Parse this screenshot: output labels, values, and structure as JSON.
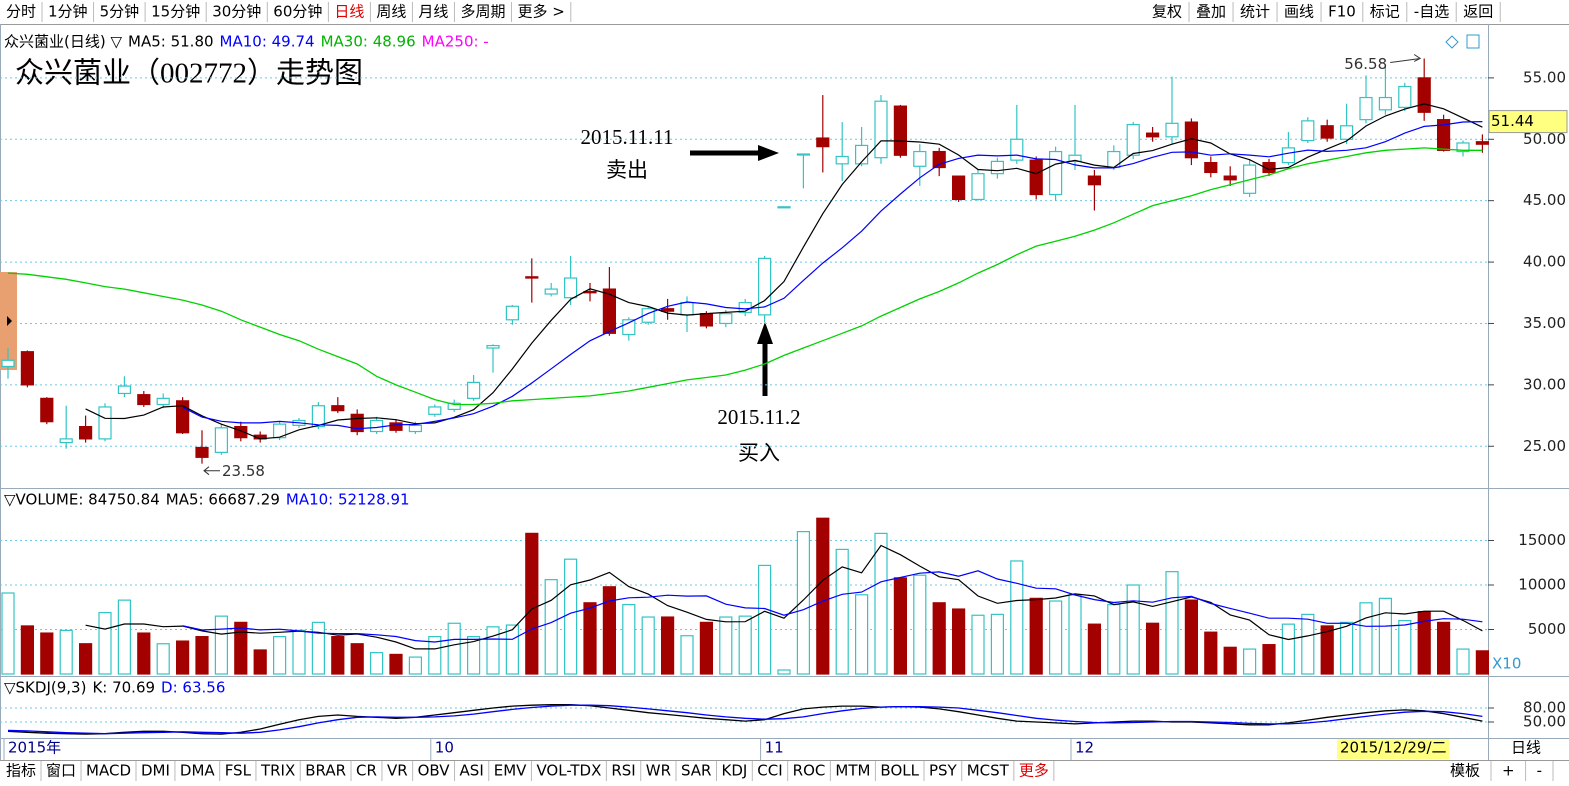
{
  "toolbar": {
    "left": [
      "分时",
      "1分钟",
      "5分钟",
      "15分钟",
      "30分钟",
      "60分钟",
      "日线",
      "周线",
      "月线",
      "多周期",
      "更多 >"
    ],
    "right": [
      "复权",
      "叠加",
      "统计",
      "画线",
      "F10",
      "标记",
      "-自选",
      "返回"
    ],
    "highlight": "日线"
  },
  "bottom_tabs": {
    "left": [
      "指标",
      "窗口",
      "MACD",
      "DMI",
      "DMA",
      "FSL",
      "TRIX",
      "BRAR",
      "CR",
      "VR",
      "OBV",
      "ASI",
      "EMV",
      "VOL-TDX",
      "RSI",
      "WR",
      "SAR",
      "KDJ",
      "CCI",
      "ROC",
      "MTM",
      "BOLL",
      "PSY",
      "MCST",
      "更多"
    ],
    "right": [
      "模板",
      "+",
      "-"
    ],
    "highlight": "更多"
  },
  "cursor": {
    "date": "2015/12/29/二",
    "price": 51.44
  },
  "period_label": "日线",
  "chart_data": [
    {
      "type": "candlestick",
      "title": "众兴菌业（002772）走势图",
      "legend": [
        {
          "text": "众兴菌业(日线) ▽",
          "color": "#000000"
        },
        {
          "text": "MA5: 51.80",
          "color": "#000000"
        },
        {
          "text": "MA10: 49.74",
          "color": "#0000ff"
        },
        {
          "text": "MA30: 48.96",
          "color": "#00b400"
        },
        {
          "text": "MA250: -",
          "color": "#ff00ff"
        }
      ],
      "annotations": [
        "2015.11.11",
        "卖出",
        "2015.11.2",
        "买入"
      ],
      "categories": [
        "2015年",
        null,
        null,
        null,
        null,
        null,
        null,
        null,
        null,
        null,
        null,
        null,
        null,
        null,
        null,
        null,
        null,
        null,
        null,
        null,
        null,
        null,
        "10",
        null,
        null,
        null,
        null,
        null,
        null,
        null,
        null,
        null,
        null,
        null,
        null,
        null,
        null,
        null,
        null,
        "11",
        null,
        null,
        null,
        null,
        null,
        null,
        null,
        null,
        null,
        null,
        null,
        null,
        null,
        null,
        null,
        "12",
        null,
        null,
        null,
        null,
        null,
        null,
        null,
        null,
        null,
        null,
        null,
        null,
        null,
        null,
        null,
        null,
        null,
        null,
        null,
        null,
        null
      ],
      "open": [
        31.5,
        32.7,
        28.9,
        25.3,
        26.6,
        25.6,
        29.3,
        29.2,
        28.4,
        28.7,
        24.9,
        24.5,
        26.6,
        25.9,
        25.7,
        26.7,
        26.6,
        28.3,
        27.6,
        26.2,
        26.9,
        26.2,
        27.6,
        28.0,
        28.9,
        33.0,
        35.3,
        38.8,
        37.4,
        37.1,
        37.6,
        37.8,
        34.1,
        35.1,
        36.2,
        35.7,
        35.8,
        35.0,
        35.9,
        35.7,
        44.5,
        48.8,
        50.1,
        48.0,
        48.0,
        48.5,
        52.7,
        47.8,
        49.0,
        47.0,
        45.1,
        47.2,
        48.3,
        48.3,
        45.5,
        48.2,
        47.0,
        47.7,
        48.7,
        50.5,
        50.2,
        51.4,
        48.1,
        47.0,
        45.6,
        48.1,
        48.1,
        49.9,
        51.1,
        50.0,
        51.6,
        52.4,
        52.6,
        55.0,
        51.6,
        49.0,
        49.8
      ],
      "high": [
        33.0,
        32.8,
        29.0,
        28.3,
        27.5,
        28.5,
        30.7,
        29.5,
        29.3,
        29.0,
        26.3,
        26.8,
        27.0,
        26.2,
        27.0,
        27.3,
        28.6,
        29.0,
        28.0,
        27.4,
        27.2,
        27.0,
        28.4,
        28.8,
        30.8,
        33.3,
        36.5,
        40.3,
        38.3,
        40.5,
        38.3,
        39.6,
        35.5,
        36.4,
        37.0,
        37.2,
        36.0,
        36.1,
        37.0,
        40.5,
        44.5,
        48.8,
        53.6,
        51.4,
        51.0,
        53.6,
        52.8,
        49.6,
        49.3,
        47.0,
        47.6,
        48.5,
        52.8,
        48.6,
        49.4,
        52.8,
        47.5,
        49.5,
        51.4,
        51.0,
        55.1,
        51.7,
        48.6,
        47.8,
        48.3,
        48.4,
        50.6,
        51.8,
        51.6,
        52.9,
        55.2,
        56.0,
        54.6,
        56.58,
        52.0,
        49.9,
        50.4
      ],
      "low": [
        30.5,
        29.8,
        26.8,
        24.8,
        25.3,
        25.4,
        29.0,
        28.2,
        28.1,
        26.0,
        23.58,
        24.3,
        25.4,
        25.3,
        25.5,
        26.5,
        26.4,
        27.7,
        25.9,
        26.0,
        26.1,
        26.0,
        27.4,
        27.8,
        28.7,
        31.0,
        34.9,
        36.7,
        37.2,
        36.5,
        36.8,
        34.0,
        33.6,
        34.9,
        35.3,
        34.3,
        34.6,
        34.7,
        35.6,
        35.1,
        44.5,
        46.0,
        47.3,
        46.6,
        47.8,
        48.0,
        48.5,
        46.2,
        47.0,
        44.9,
        45.0,
        46.8,
        48.0,
        45.1,
        45.0,
        47.5,
        44.2,
        47.5,
        48.4,
        49.8,
        49.6,
        47.9,
        46.9,
        46.2,
        45.3,
        47.0,
        47.9,
        49.7,
        49.8,
        49.6,
        51.3,
        52.0,
        52.3,
        51.5,
        49.0,
        48.6,
        48.9
      ],
      "close": [
        32.0,
        30.0,
        27.0,
        25.6,
        25.6,
        28.2,
        29.9,
        28.4,
        28.9,
        26.1,
        24.1,
        26.5,
        25.7,
        25.6,
        26.8,
        27.1,
        28.3,
        27.9,
        26.2,
        27.1,
        26.3,
        26.7,
        28.2,
        28.5,
        30.2,
        33.2,
        36.4,
        38.7,
        37.8,
        38.7,
        37.5,
        34.2,
        35.3,
        36.2,
        36.0,
        36.7,
        34.8,
        35.8,
        36.7,
        40.3,
        44.5,
        48.8,
        49.4,
        48.6,
        49.5,
        53.1,
        48.7,
        49.0,
        47.7,
        45.1,
        47.2,
        48.2,
        50.0,
        45.5,
        49.0,
        48.7,
        46.3,
        49.0,
        51.2,
        50.2,
        51.3,
        48.5,
        47.3,
        46.7,
        47.9,
        47.3,
        49.3,
        51.5,
        50.1,
        51.1,
        53.4,
        53.4,
        54.3,
        52.2,
        49.1,
        49.7,
        49.6
      ],
      "up_color": "#33c4c4",
      "down_color": "#a30000",
      "ma_colors": [
        "#000000",
        "#0000ff"
      ],
      "series": [
        {
          "name": "MA30",
          "color": "#00d200",
          "values": [
            39.1,
            39.0,
            38.8,
            38.6,
            38.3,
            38.0,
            37.8,
            37.5,
            37.2,
            36.9,
            36.5,
            36.0,
            35.3,
            34.7,
            34.1,
            33.6,
            32.9,
            32.3,
            31.7,
            30.7,
            30.0,
            29.4,
            28.8,
            28.4,
            28.4,
            28.5,
            28.7,
            28.8,
            28.9,
            29.0,
            29.1,
            29.3,
            29.5,
            29.8,
            30.1,
            30.4,
            30.6,
            30.8,
            31.2,
            31.7,
            32.4,
            33.0,
            33.6,
            34.2,
            34.8,
            35.6,
            36.3,
            37.0,
            37.6,
            38.3,
            39.1,
            39.8,
            40.6,
            41.3,
            41.7,
            42.1,
            42.6,
            43.2,
            43.9,
            44.6,
            45.0,
            45.4,
            45.9,
            46.3,
            46.7,
            47.1,
            47.6,
            48.0,
            48.3,
            48.6,
            48.9,
            49.1,
            49.2,
            49.3,
            49.2,
            49.1,
            49.1
          ]
        }
      ],
      "ylim": [
        21.6,
        58.9
      ],
      "yticks": [
        {
          "value": 25,
          "label": "25.00"
        },
        {
          "value": 30,
          "label": "30.00"
        },
        {
          "value": 35,
          "label": "35.00"
        },
        {
          "value": 40,
          "label": "40.00"
        },
        {
          "value": 45,
          "label": "45.00"
        },
        {
          "value": 50,
          "label": "50.00"
        },
        {
          "value": 55,
          "label": "55.00"
        }
      ],
      "grid": true
    },
    {
      "type": "bar",
      "legend": [
        {
          "text": "▽VOLUME: 84750.84",
          "color": "#000000"
        },
        {
          "text": "MA5: 66687.29",
          "color": "#000000"
        },
        {
          "text": "MA10: 52128.91",
          "color": "#0000ff"
        }
      ],
      "unit": "X10",
      "values": [
        9100,
        5400,
        4600,
        4900,
        3400,
        6900,
        8300,
        4600,
        3400,
        3700,
        4200,
        6500,
        5800,
        2700,
        4200,
        4900,
        5800,
        4200,
        3400,
        2400,
        2200,
        1900,
        4200,
        5700,
        4200,
        5300,
        5500,
        15800,
        10600,
        12900,
        8000,
        9800,
        7800,
        6400,
        6400,
        4300,
        5800,
        6400,
        6500,
        12200,
        450,
        16000,
        17500,
        14000,
        8900,
        15800,
        10800,
        11100,
        8000,
        7300,
        6600,
        6700,
        12700,
        8500,
        8200,
        8900,
        5600,
        7800,
        10000,
        5700,
        11500,
        8300,
        4700,
        3000,
        2800,
        3300,
        5600,
        6700,
        5400,
        5800,
        8000,
        8500,
        6000,
        7000,
        5800,
        2800,
        2600
      ],
      "ma_colors": [
        "#000000",
        "#0000ff"
      ],
      "ylim": [
        0,
        20000
      ],
      "yticks": [
        5000,
        10000,
        15000
      ],
      "grid": true
    },
    {
      "type": "line",
      "legend": [
        {
          "text": "▽SKDJ(9,3)",
          "color": "#000000"
        },
        {
          "text": "K: 70.69",
          "color": "#000000"
        },
        {
          "text": "D: 63.56",
          "color": "#0000ff"
        }
      ],
      "series": [
        {
          "name": "K",
          "color": "#000000",
          "values": [
            30,
            28,
            26,
            25,
            24,
            25,
            28,
            30,
            30,
            28,
            25,
            24,
            28,
            35,
            45,
            55,
            62,
            65,
            62,
            60,
            58,
            60,
            65,
            70,
            75,
            80,
            84,
            86,
            87,
            87,
            85,
            80,
            75,
            70,
            66,
            62,
            58,
            55,
            52,
            55,
            68,
            78,
            82,
            84,
            84,
            82,
            83,
            82,
            78,
            72,
            65,
            58,
            52,
            50,
            48,
            46,
            48,
            50,
            52,
            52,
            50,
            50,
            48,
            46,
            44,
            44,
            48,
            54,
            60,
            65,
            70,
            74,
            76,
            74,
            68,
            60,
            52
          ]
        },
        {
          "name": "D",
          "color": "#0000ff",
          "values": [
            32,
            31,
            29,
            27,
            26,
            25,
            26,
            27,
            28,
            29,
            28,
            27,
            26,
            28,
            33,
            40,
            48,
            55,
            60,
            61,
            60,
            60,
            61,
            63,
            67,
            72,
            77,
            81,
            84,
            86,
            86,
            85,
            82,
            78,
            74,
            70,
            65,
            61,
            58,
            56,
            57,
            61,
            68,
            74,
            79,
            82,
            83,
            83,
            82,
            80,
            75,
            70,
            64,
            58,
            54,
            51,
            49,
            48,
            49,
            50,
            51,
            51,
            50,
            49,
            47,
            46,
            46,
            48,
            52,
            57,
            62,
            67,
            71,
            73,
            72,
            68,
            62
          ]
        }
      ],
      "ylim": [
        15.7,
        140
      ],
      "yticks": [
        {
          "value": 80,
          "label": "80.00"
        },
        {
          "value": 50,
          "label": "50.00"
        }
      ],
      "grid": true
    }
  ]
}
